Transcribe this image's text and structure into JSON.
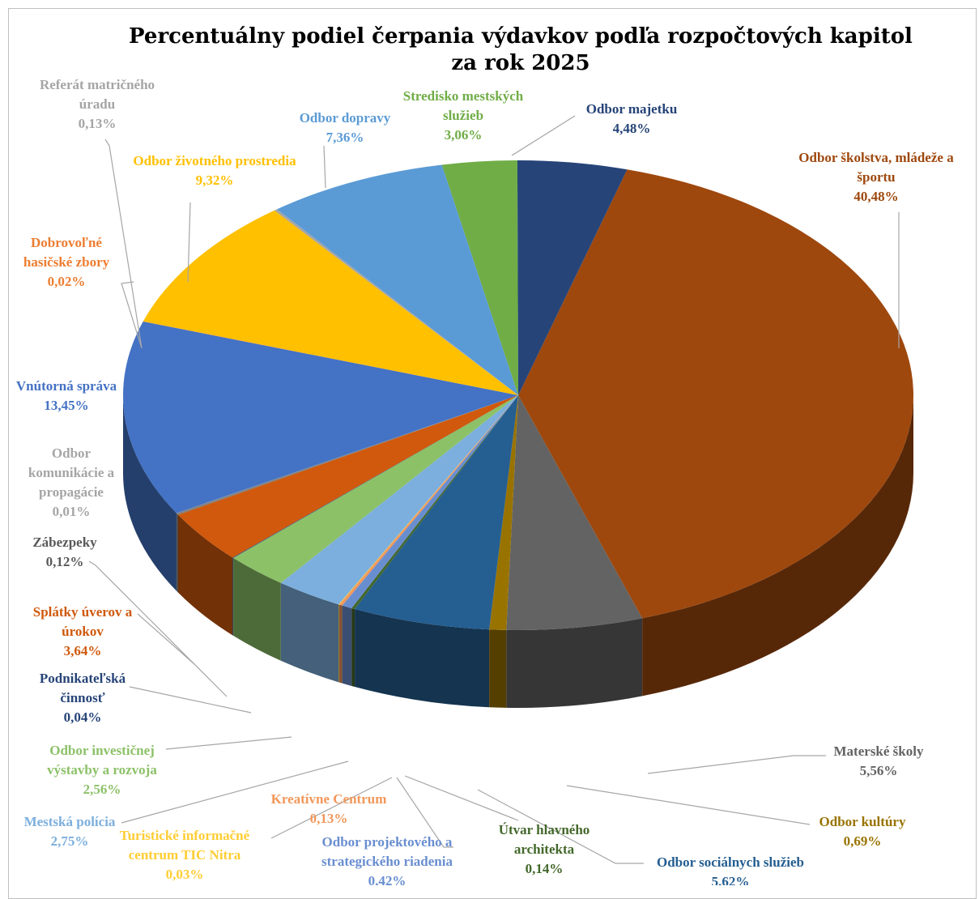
{
  "chart_data": {
    "type": "pie",
    "title_lines": [
      "Percentuálny podiel čerpania výdavkov podľa rozpočtových kapitol",
      "za rok 2025"
    ],
    "slices": [
      {
        "label": [
          "Odbor školstva, mládeže a",
          "športu"
        ],
        "value_text": "40,48%",
        "value": 40.48,
        "color": "#9e480e",
        "text_color": "#9e480e"
      },
      {
        "label": [
          "Materské školy"
        ],
        "value_text": "5,56%",
        "value": 5.56,
        "color": "#636363",
        "text_color": "#636363"
      },
      {
        "label": [
          "Odbor kultúry"
        ],
        "value_text": "0,69%",
        "value": 0.69,
        "color": "#997300",
        "text_color": "#997300"
      },
      {
        "label": [
          "Odbor sociálnych služieb"
        ],
        "value_text": "5,62%",
        "value": 5.62,
        "color": "#255e91",
        "text_color": "#255e91"
      },
      {
        "label": [
          "Útvar hlavného",
          "architekta"
        ],
        "value_text": "0,14%",
        "value": 0.14,
        "color": "#43682b",
        "text_color": "#43682b"
      },
      {
        "label": [
          "Odbor projektového a",
          "strategického riadenia"
        ],
        "value_text": "0,42%",
        "value": 0.42,
        "color": "#698ed0",
        "text_color": "#698ed0"
      },
      {
        "label": [
          "Kreatívne Centrum"
        ],
        "value_text": "0,13%",
        "value": 0.13,
        "color": "#f1975a",
        "text_color": "#f1975a"
      },
      {
        "label": [
          "Turistické informačné",
          "centrum TIC  Nitra"
        ],
        "value_text": "0,03%",
        "value": 0.03,
        "color": "#ffcd33",
        "text_color": "#ffcd33"
      },
      {
        "label": [
          "Mestská polícia"
        ],
        "value_text": "2,75%",
        "value": 2.75,
        "color": "#7cafdd",
        "text_color": "#7cafdd"
      },
      {
        "label": [
          "Odbor investičnej",
          "výstavby a rozvoja"
        ],
        "value_text": "2,56%",
        "value": 2.56,
        "color": "#8cc168",
        "text_color": "#8cc168"
      },
      {
        "label": [
          "Podnikateľská",
          "činnosť"
        ],
        "value_text": "0,04%",
        "value": 0.04,
        "color": "#264478",
        "text_color": "#264478"
      },
      {
        "label": [
          "Splátky úverov a",
          "úrokov"
        ],
        "value_text": "3,64%",
        "value": 3.64,
        "color": "#d0590d",
        "text_color": "#d0590d"
      },
      {
        "label": [
          "Zábezpeky"
        ],
        "value_text": "0,12%",
        "value": 0.12,
        "color": "#7f7f7f",
        "text_color": "#595959"
      },
      {
        "label": [
          "Odbor",
          "komunikácie a",
          "propagácie"
        ],
        "value_text": "0,01%",
        "value": 0.01,
        "color": "#a5a5a5",
        "text_color": "#a5a5a5"
      },
      {
        "label": [
          "Vnútorná správa"
        ],
        "value_text": "13,45%",
        "value": 13.45,
        "color": "#4472c4",
        "text_color": "#4472c4"
      },
      {
        "label": [
          "Dobrovoľné",
          "hasičské zbory"
        ],
        "value_text": "0,02%",
        "value": 0.02,
        "color": "#ed7d31",
        "text_color": "#ed7d31"
      },
      {
        "label": [
          "Odbor životného prostredia"
        ],
        "value_text": "9,32%",
        "value": 9.32,
        "color": "#ffc000",
        "text_color": "#ffc000"
      },
      {
        "label": [
          "Referát matričného",
          "úradu"
        ],
        "value_text": "0,13%",
        "value": 0.13,
        "color": "#a5a5a5",
        "text_color": "#a5a5a5"
      },
      {
        "label": [
          "Odbor dopravy"
        ],
        "value_text": "7,36%",
        "value": 7.36,
        "color": "#5b9bd5",
        "text_color": "#5b9bd5"
      },
      {
        "label": [
          "Stredisko mestských",
          "služieb"
        ],
        "value_text": "3,06%",
        "value": 3.06,
        "color": "#70ad47",
        "text_color": "#70ad47"
      },
      {
        "label": [
          "Odbor majetku"
        ],
        "value_text": "4,48%",
        "value": 4.48,
        "color": "#264478",
        "text_color": "#264478"
      }
    ],
    "legend": "none"
  }
}
